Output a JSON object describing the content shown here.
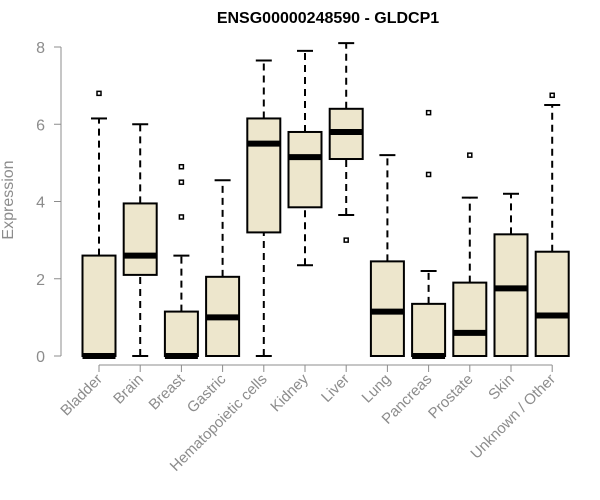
{
  "chart_data": {
    "type": "boxplot",
    "title": "ENSG00000248590 - GLDCP1",
    "xlabel": "",
    "ylabel": "Expression",
    "ylim": [
      0,
      8
    ],
    "yticks": [
      0,
      2,
      4,
      6,
      8
    ],
    "colors": {
      "box_fill": "#ede6cc",
      "box_stroke": "#000000",
      "axis": "#8c8c8c"
    },
    "categories": [
      "Bladder",
      "Brain",
      "Breast",
      "Gastric",
      "Hematopoietic cells",
      "Kidney",
      "Liver",
      "Lung",
      "Pancreas",
      "Prostate",
      "Skin",
      "Unknown / Other"
    ],
    "boxes": [
      {
        "category": "Bladder",
        "whisker_low": 0,
        "q1": 0,
        "median": 0,
        "q3": 2.6,
        "whisker_high": 6.15,
        "outliers": [
          6.8
        ]
      },
      {
        "category": "Brain",
        "whisker_low": 0,
        "q1": 2.1,
        "median": 2.6,
        "q3": 3.95,
        "whisker_high": 6.0,
        "outliers": []
      },
      {
        "category": "Breast",
        "whisker_low": 0,
        "q1": 0,
        "median": 0,
        "q3": 1.15,
        "whisker_high": 2.6,
        "outliers": [
          3.6,
          4.5,
          4.9
        ]
      },
      {
        "category": "Gastric",
        "whisker_low": 0,
        "q1": 0,
        "median": 1.0,
        "q3": 2.05,
        "whisker_high": 4.55,
        "outliers": []
      },
      {
        "category": "Hematopoietic cells",
        "whisker_low": 0,
        "q1": 3.2,
        "median": 5.5,
        "q3": 6.15,
        "whisker_high": 7.65,
        "outliers": []
      },
      {
        "category": "Kidney",
        "whisker_low": 2.35,
        "q1": 3.85,
        "median": 5.15,
        "q3": 5.8,
        "whisker_high": 7.9,
        "outliers": []
      },
      {
        "category": "Liver",
        "whisker_low": 3.65,
        "q1": 5.1,
        "median": 5.8,
        "q3": 6.4,
        "whisker_high": 8.1,
        "outliers": [
          3.0
        ]
      },
      {
        "category": "Lung",
        "whisker_low": 0,
        "q1": 0,
        "median": 1.15,
        "q3": 2.45,
        "whisker_high": 5.2,
        "outliers": []
      },
      {
        "category": "Pancreas",
        "whisker_low": 0,
        "q1": 0,
        "median": 0,
        "q3": 1.35,
        "whisker_high": 2.2,
        "outliers": [
          4.7,
          6.3
        ]
      },
      {
        "category": "Prostate",
        "whisker_low": 0,
        "q1": 0,
        "median": 0.6,
        "q3": 1.9,
        "whisker_high": 4.1,
        "outliers": [
          5.2
        ]
      },
      {
        "category": "Skin",
        "whisker_low": 0,
        "q1": 0,
        "median": 1.75,
        "q3": 3.15,
        "whisker_high": 4.2,
        "outliers": []
      },
      {
        "category": "Unknown / Other",
        "whisker_low": 0,
        "q1": 0,
        "median": 1.05,
        "q3": 2.7,
        "whisker_high": 6.5,
        "outliers": [
          6.75
        ]
      }
    ],
    "grid": false,
    "legend": "none"
  }
}
